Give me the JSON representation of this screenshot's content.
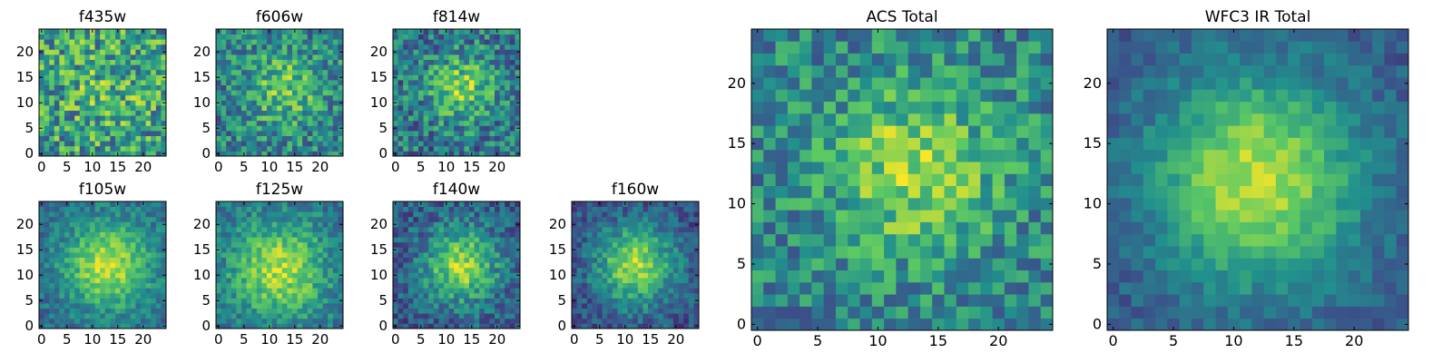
{
  "figure": {
    "colormap": "viridis",
    "colors": [
      "#440154",
      "#3b528b",
      "#21908d",
      "#5dc963",
      "#fde725"
    ]
  },
  "chart_data": [
    {
      "type": "heatmap",
      "title": "f435w",
      "grid_size": 25,
      "xticks": [
        "0",
        "5",
        "10",
        "15",
        "20"
      ],
      "yticks": [
        "0",
        "5",
        "10",
        "15",
        "20"
      ],
      "xlim": [
        0,
        25
      ],
      "ylim": [
        0,
        25
      ],
      "grid": false,
      "center": [
        13,
        13
      ],
      "peak_strength": 0.12,
      "peak_width": 6,
      "noise": 0.32,
      "base": 0.55,
      "seed": 11
    },
    {
      "type": "heatmap",
      "title": "f606w",
      "grid_size": 25,
      "xticks": [
        "0",
        "5",
        "10",
        "15",
        "20"
      ],
      "yticks": [
        "0",
        "5",
        "10",
        "15",
        "20"
      ],
      "xlim": [
        0,
        25
      ],
      "ylim": [
        0,
        25
      ],
      "grid": false,
      "center": [
        13,
        13
      ],
      "peak_strength": 0.3,
      "peak_width": 5,
      "noise": 0.25,
      "base": 0.45,
      "seed": 23
    },
    {
      "type": "heatmap",
      "title": "f814w",
      "grid_size": 25,
      "xticks": [
        "0",
        "5",
        "10",
        "15",
        "20"
      ],
      "yticks": [
        "0",
        "5",
        "10",
        "15",
        "20"
      ],
      "xlim": [
        0,
        25
      ],
      "ylim": [
        0,
        25
      ],
      "grid": false,
      "center": [
        13,
        13
      ],
      "peak_strength": 0.4,
      "peak_width": 4.5,
      "noise": 0.25,
      "base": 0.4,
      "seed": 37
    },
    {
      "type": "heatmap",
      "title": "f105w",
      "grid_size": 25,
      "xticks": [
        "0",
        "5",
        "10",
        "15",
        "20"
      ],
      "yticks": [
        "0",
        "5",
        "10",
        "15",
        "20"
      ],
      "xlim": [
        0,
        25
      ],
      "ylim": [
        0,
        25
      ],
      "grid": false,
      "center": [
        13,
        12
      ],
      "peak_strength": 0.55,
      "peak_width": 6,
      "noise": 0.14,
      "base": 0.35,
      "seed": 41
    },
    {
      "type": "heatmap",
      "title": "f125w",
      "grid_size": 25,
      "xticks": [
        "0",
        "5",
        "10",
        "15",
        "20"
      ],
      "yticks": [
        "0",
        "5",
        "10",
        "15",
        "20"
      ],
      "xlim": [
        0,
        25
      ],
      "ylim": [
        0,
        25
      ],
      "grid": false,
      "center": [
        12,
        11
      ],
      "peak_strength": 0.5,
      "peak_width": 6.5,
      "noise": 0.16,
      "base": 0.38,
      "seed": 53
    },
    {
      "type": "heatmap",
      "title": "f140w",
      "grid_size": 25,
      "xticks": [
        "0",
        "5",
        "10",
        "15",
        "20"
      ],
      "yticks": [
        "0",
        "5",
        "10",
        "15",
        "20"
      ],
      "xlim": [
        0,
        25
      ],
      "ylim": [
        0,
        25
      ],
      "grid": false,
      "center": [
        13,
        12
      ],
      "peak_strength": 0.55,
      "peak_width": 5,
      "noise": 0.18,
      "base": 0.3,
      "seed": 67
    },
    {
      "type": "heatmap",
      "title": "f160w",
      "grid_size": 25,
      "xticks": [
        "0",
        "5",
        "10",
        "15",
        "20"
      ],
      "yticks": [
        "0",
        "5",
        "10",
        "15",
        "20"
      ],
      "xlim": [
        0,
        25
      ],
      "ylim": [
        0,
        25
      ],
      "grid": false,
      "center": [
        12,
        12
      ],
      "peak_strength": 0.6,
      "peak_width": 5.5,
      "noise": 0.15,
      "base": 0.25,
      "seed": 79
    },
    {
      "type": "heatmap",
      "title": "ACS Total",
      "grid_size": 25,
      "xticks": [
        "0",
        "5",
        "10",
        "15",
        "20"
      ],
      "yticks": [
        "0",
        "5",
        "10",
        "15",
        "20"
      ],
      "xlim": [
        0,
        25
      ],
      "ylim": [
        0,
        25
      ],
      "grid": false,
      "center": [
        13,
        13
      ],
      "peak_strength": 0.38,
      "peak_width": 5,
      "noise": 0.22,
      "base": 0.45,
      "seed": 97
    },
    {
      "type": "heatmap",
      "title": "WFC3 IR Total",
      "grid_size": 25,
      "xticks": [
        "0",
        "5",
        "10",
        "15",
        "20"
      ],
      "yticks": [
        "0",
        "5",
        "10",
        "15",
        "20"
      ],
      "xlim": [
        0,
        25
      ],
      "ylim": [
        0,
        25
      ],
      "grid": false,
      "center": [
        12,
        12
      ],
      "peak_strength": 0.62,
      "peak_width": 6,
      "noise": 0.1,
      "base": 0.28,
      "seed": 101
    }
  ]
}
